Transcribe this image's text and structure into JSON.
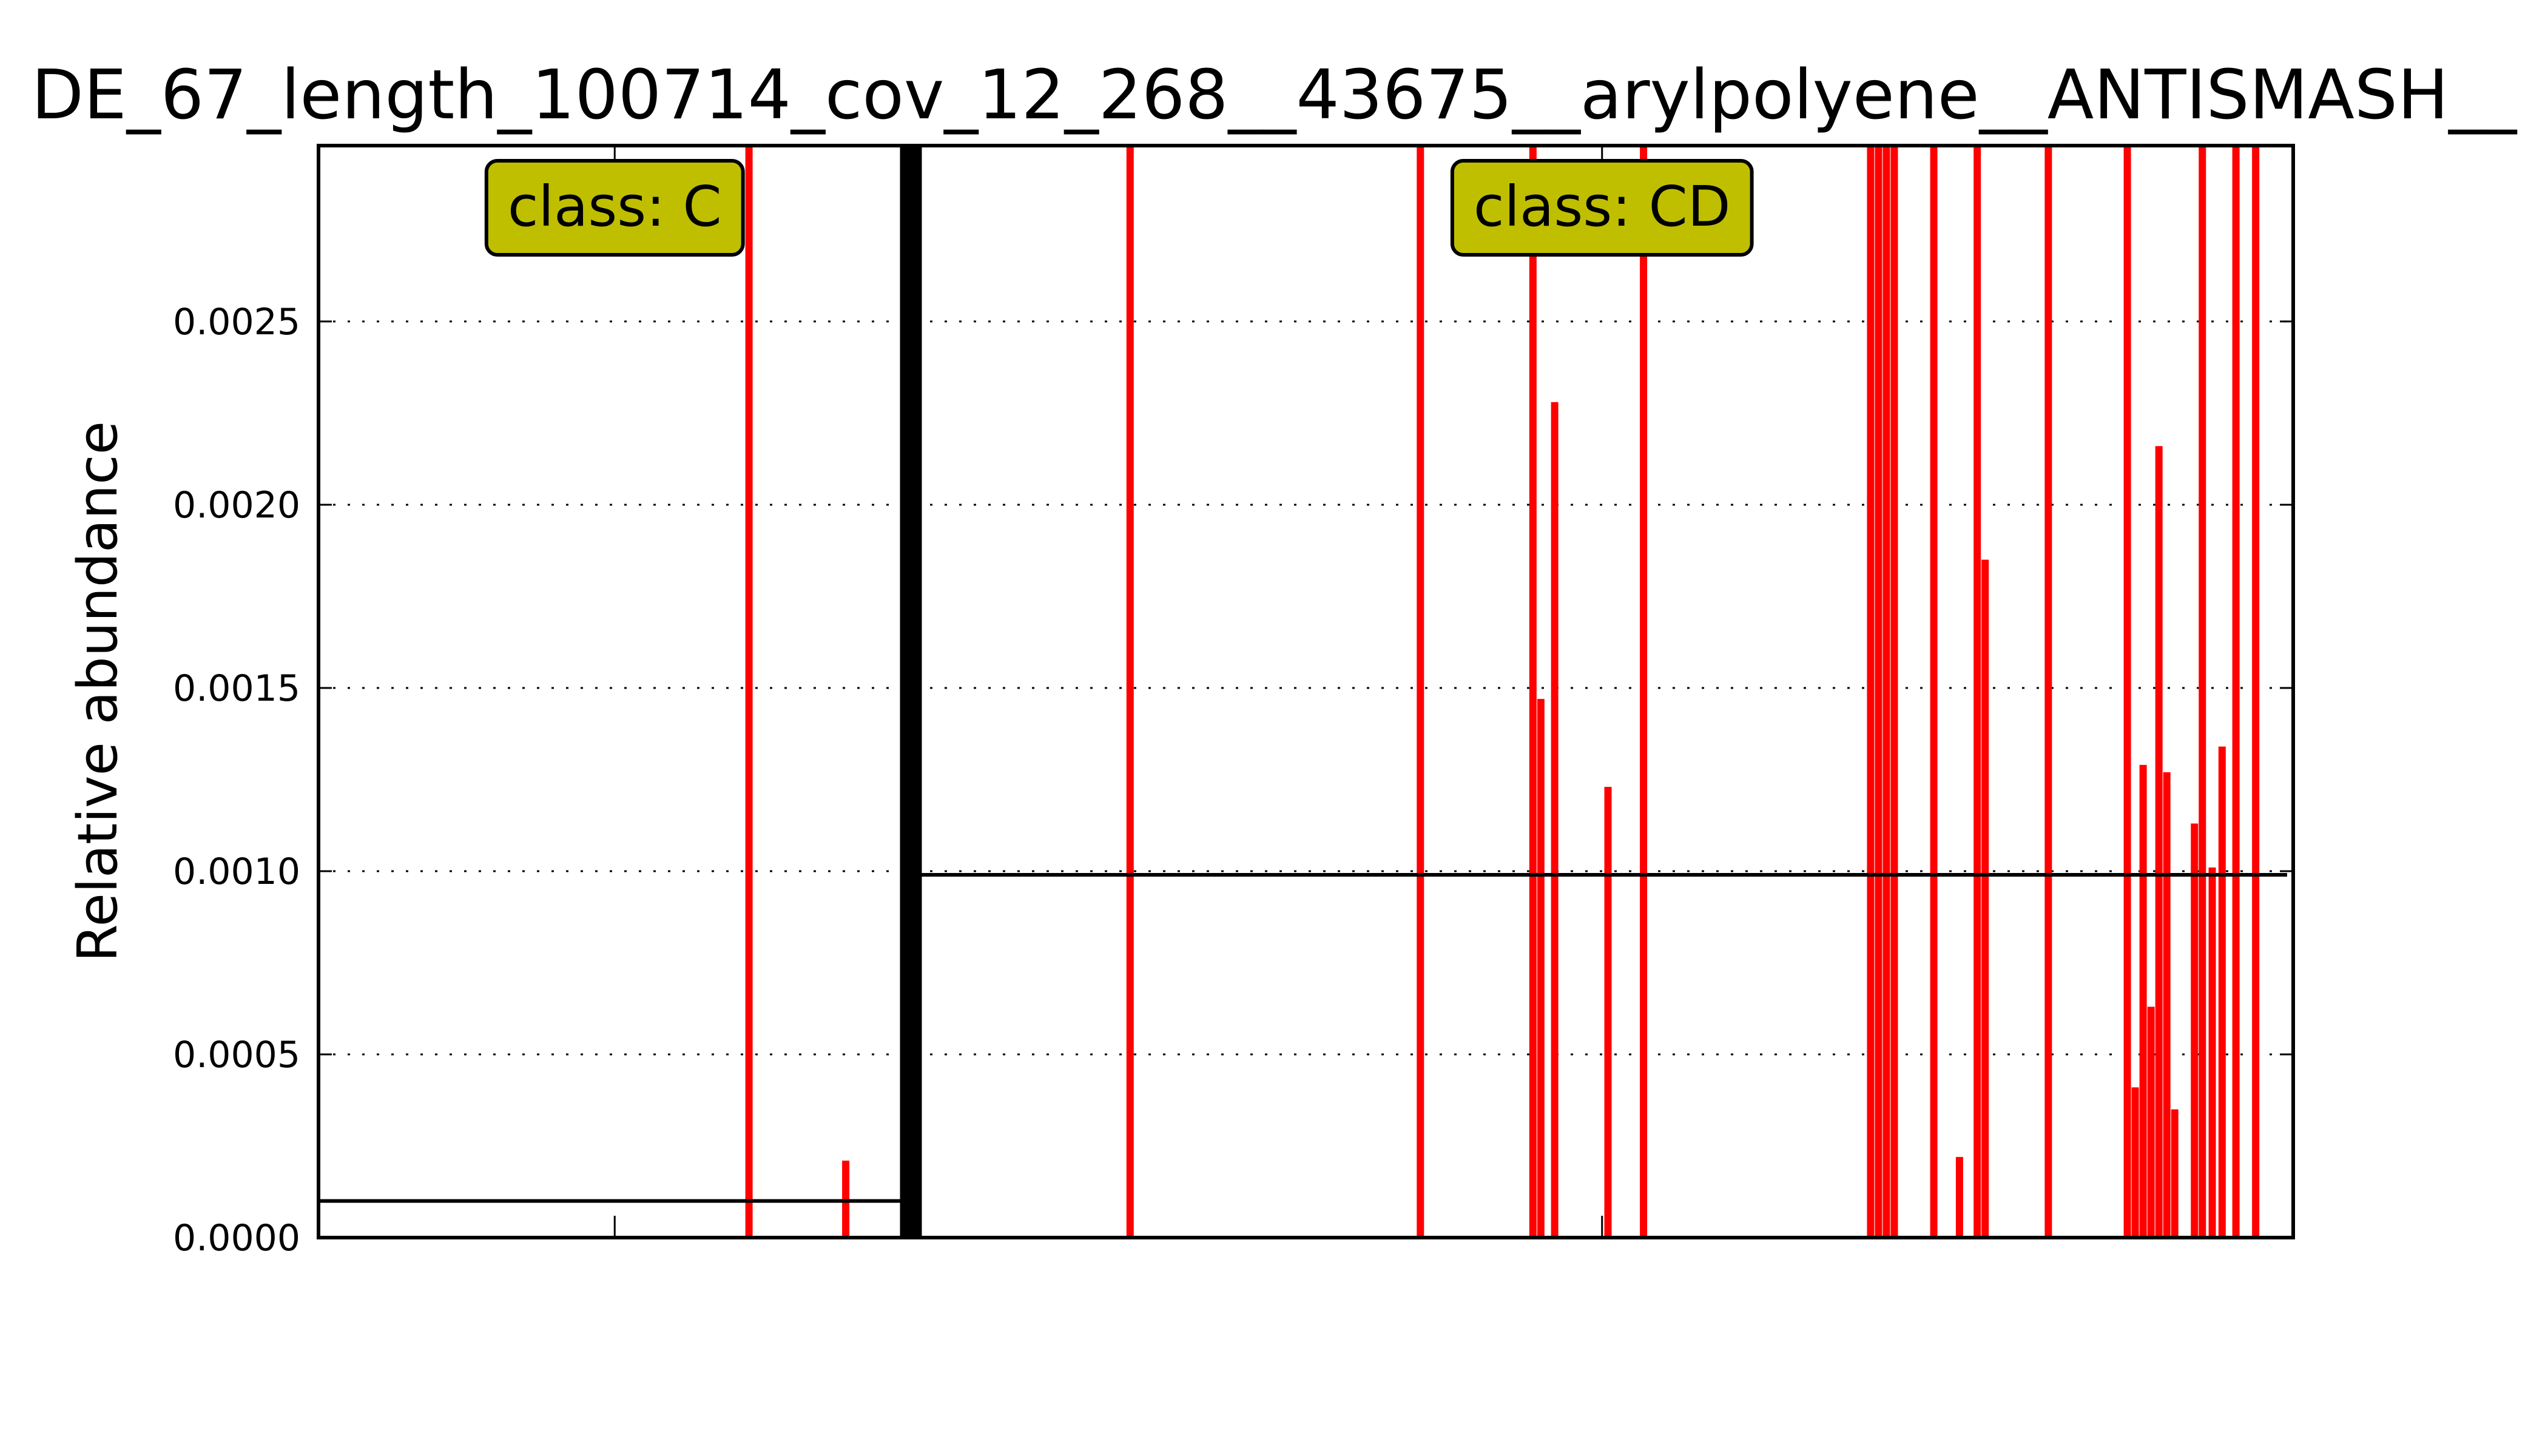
{
  "chart_data": {
    "type": "bar",
    "title": "DE_67_length_100714_cov_12_268__43675__arylpolyene__ANTISMASH__",
    "xlabel": "",
    "ylabel": "Relative abundance",
    "ylim": [
      0,
      0.00298
    ],
    "xlim": [
      0,
      100
    ],
    "yticks": [
      "0.0000",
      "0.0005",
      "0.0010",
      "0.0015",
      "0.0020",
      "0.0025"
    ],
    "ytick_values": [
      0,
      0.0005,
      0.001,
      0.0015,
      0.002,
      0.0025
    ],
    "grid": "y dotted",
    "bar_color": "#ff0000",
    "threshold_color": "#000000",
    "divider_x": 30.0,
    "classes": [
      {
        "label": "class: C",
        "x": 15.0,
        "threshold": 0.0001
      },
      {
        "label": "class: CD",
        "x": 65.0,
        "threshold": 0.00099
      }
    ],
    "bars": [
      {
        "x": 21.8,
        "value": 0.003
      },
      {
        "x": 26.7,
        "value": 0.00021
      },
      {
        "x": 41.1,
        "value": 0.003
      },
      {
        "x": 55.8,
        "value": 0.003
      },
      {
        "x": 61.5,
        "value": 0.003
      },
      {
        "x": 61.9,
        "value": 0.00147
      },
      {
        "x": 62.6,
        "value": 0.00228
      },
      {
        "x": 65.3,
        "value": 0.00123
      },
      {
        "x": 67.1,
        "value": 0.003
      },
      {
        "x": 78.6,
        "value": 0.003
      },
      {
        "x": 79.0,
        "value": 0.003
      },
      {
        "x": 79.4,
        "value": 0.003
      },
      {
        "x": 79.8,
        "value": 0.003
      },
      {
        "x": 81.8,
        "value": 0.003
      },
      {
        "x": 83.1,
        "value": 0.00022
      },
      {
        "x": 84.0,
        "value": 0.003
      },
      {
        "x": 84.4,
        "value": 0.00185
      },
      {
        "x": 87.6,
        "value": 0.003
      },
      {
        "x": 91.6,
        "value": 0.003
      },
      {
        "x": 92.0,
        "value": 0.00041
      },
      {
        "x": 92.4,
        "value": 0.00129
      },
      {
        "x": 92.8,
        "value": 0.00063
      },
      {
        "x": 93.2,
        "value": 0.00216
      },
      {
        "x": 93.6,
        "value": 0.00127
      },
      {
        "x": 94.0,
        "value": 0.00035
      },
      {
        "x": 95.0,
        "value": 0.00113
      },
      {
        "x": 95.4,
        "value": 0.003
      },
      {
        "x": 95.9,
        "value": 0.00101
      },
      {
        "x": 96.4,
        "value": 0.00134
      },
      {
        "x": 97.1,
        "value": 0.003
      },
      {
        "x": 98.1,
        "value": 0.003
      }
    ]
  }
}
